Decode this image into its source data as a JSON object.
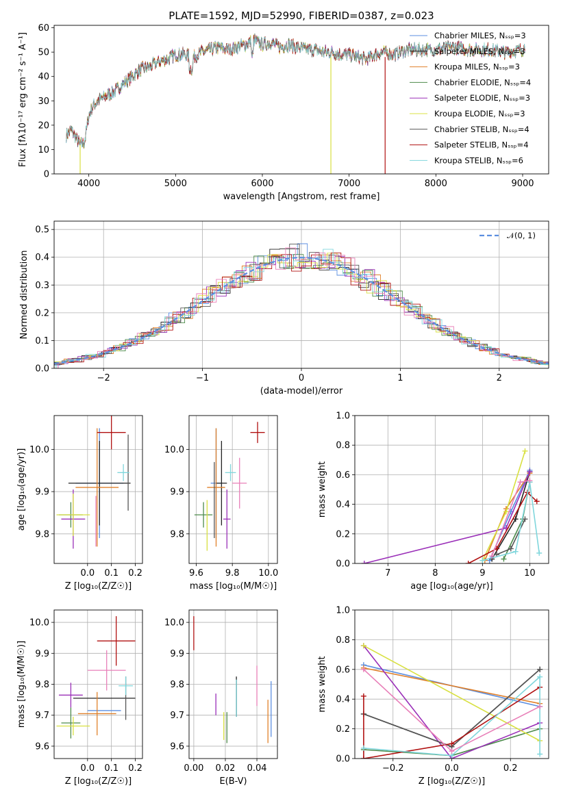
{
  "chart_data": [
    {
      "id": "spectrum",
      "type": "line",
      "title": "PLATE=1592, MJD=52990, FIBERID=0387, z=0.023",
      "xlabel": "wavelength [Angstrom, rest frame]",
      "ylabel": "Flux [fλ10⁻¹⁷ erg cm⁻² s⁻¹ A⁻¹]",
      "xlim": [
        3600,
        9300
      ],
      "ylim": [
        0,
        61
      ],
      "xticks": [
        4000,
        5000,
        6000,
        7000,
        8000,
        9000
      ],
      "yticks": [
        0,
        10,
        20,
        30,
        40,
        50,
        60
      ],
      "legend_position": "top-right",
      "grid": false,
      "continuum": {
        "x": [
          3740,
          3800,
          3850,
          3900,
          3950,
          4000,
          4050,
          4100,
          4150,
          4200,
          4300,
          4400,
          4500,
          4600,
          4700,
          4800,
          4900,
          5000,
          5100,
          5200,
          5300,
          5400,
          5500,
          5600,
          5700,
          5800,
          5900,
          6000,
          6100,
          6200,
          6300,
          6400,
          6500,
          6600,
          6700,
          6800,
          6900,
          7000,
          7100,
          7200,
          7300,
          7400,
          7500,
          7600,
          7700,
          7800,
          7900,
          8000,
          8200,
          8400,
          8600,
          8800,
          9000,
          9030
        ],
        "y": [
          16,
          18,
          15,
          12,
          13,
          24,
          28,
          30,
          31,
          32,
          34,
          37,
          40,
          43,
          44,
          46,
          47,
          49,
          49,
          48,
          50,
          51,
          52,
          51,
          52,
          53,
          55,
          53,
          54,
          52,
          53,
          52,
          51,
          51,
          50,
          50,
          49,
          49,
          48,
          47,
          49,
          50,
          49,
          50,
          51,
          51,
          51,
          51,
          52,
          51,
          51,
          50,
          51,
          52
        ]
      },
      "series": [
        {
          "name": "Chabrier MILES, N_SSP=3",
          "color": "#5b8ee0"
        },
        {
          "name": "Salpeter MILES, N_SSP=3",
          "color": "#222222"
        },
        {
          "name": "Kroupa MILES, N_SSP=3",
          "color": "#e0802a"
        },
        {
          "name": "Chabrier ELODIE, N_SSP=4",
          "color": "#4c8a4a"
        },
        {
          "name": "Salpeter ELODIE, N_SSP=3",
          "color": "#9a2fb8"
        },
        {
          "name": "Kroupa ELODIE, N_SSP=3",
          "color": "#d8e040"
        },
        {
          "name": "Chabrier STELIB, N_SSP=4",
          "color": "#555555"
        },
        {
          "name": "Salpeter STELIB, N_SSP=4",
          "color": "#b01010"
        },
        {
          "name": "Kroupa STELIB, N_SSP=6",
          "color": "#7fd6dc"
        }
      ],
      "spikes": [
        {
          "x": 3900,
          "y0": 12,
          "y1": 0,
          "color": "#d8e040"
        },
        {
          "x": 6790,
          "y0": 48,
          "y1": 0,
          "color": "#d8e040"
        },
        {
          "x": 7415,
          "y0": 48,
          "y1": 0,
          "color": "#b01010"
        }
      ]
    },
    {
      "id": "residuals",
      "type": "histogram",
      "xlabel": "(data-model)/error",
      "ylabel": "Normed distribution",
      "xlim": [
        -2.5,
        2.5
      ],
      "ylim": [
        0,
        0.53
      ],
      "xticks": [
        -2,
        -1,
        0,
        1,
        2
      ],
      "yticks": [
        0.0,
        0.1,
        0.2,
        0.3,
        0.4,
        0.5
      ],
      "grid": true,
      "legend": "𝒩(0, 1)",
      "legend_position": "top-right",
      "bin_width": 0.1
    },
    {
      "id": "age-vs-Z",
      "type": "scatter",
      "xlabel": "Z [log₁₀(Z/Z☉)]",
      "ylabel": "age  [log₁₀(age/yr)]",
      "xlim": [
        -0.14,
        0.23
      ],
      "ylim": [
        9.73,
        10.08
      ],
      "xticks": [
        0.0,
        0.1,
        0.2
      ],
      "yticks": [
        9.8,
        9.9,
        10.0
      ],
      "grid": true,
      "points": [
        {
          "x": 0.05,
          "y": 9.92,
          "xerr": 0.1,
          "yerr": 0.13,
          "color": "#5b8ee0"
        },
        {
          "x": 0.05,
          "y": 9.92,
          "xerr": 0.13,
          "yerr": 0.1,
          "color": "#222222"
        },
        {
          "x": 0.04,
          "y": 9.91,
          "xerr": 0.09,
          "yerr": 0.14,
          "color": "#e0802a"
        },
        {
          "x": -0.07,
          "y": 9.845,
          "xerr": 0.05,
          "yerr": 0.03,
          "color": "#4c8a4a"
        },
        {
          "x": -0.06,
          "y": 9.835,
          "xerr": 0.05,
          "yerr": 0.07,
          "color": "#9a2fb8"
        },
        {
          "x": -0.06,
          "y": 9.845,
          "xerr": 0.07,
          "yerr": 0.05,
          "color": "#d8e040"
        },
        {
          "x": 0.17,
          "y": 9.945,
          "xerr": 0.0,
          "yerr": 0.09,
          "color": "#555555"
        },
        {
          "x": 0.1,
          "y": 10.04,
          "xerr": 0.06,
          "yerr": 0.04,
          "color": "#b01010"
        },
        {
          "x": 0.15,
          "y": 9.945,
          "xerr": 0.025,
          "yerr": 0.02,
          "color": "#7fd6dc"
        },
        {
          "x": 0.035,
          "y": 9.83,
          "xerr": 0.0,
          "yerr": 0.06,
          "color": "#e87fb8"
        }
      ]
    },
    {
      "id": "age-vs-mass",
      "type": "scatter",
      "xlabel": "mass [log₁₀(M/M☉)]",
      "ylabel": "",
      "xlim": [
        9.56,
        10.05
      ],
      "ylim": [
        9.73,
        10.08
      ],
      "xticks": [
        9.6,
        9.8,
        10.0
      ],
      "yticks": [
        9.8,
        9.9,
        10.0
      ],
      "grid": true,
      "points": [
        {
          "x": 9.71,
          "y": 9.92,
          "xerr": 0.03,
          "yerr": 0.13,
          "color": "#5b8ee0"
        },
        {
          "x": 9.74,
          "y": 9.92,
          "xerr": 0.03,
          "yerr": 0.1,
          "color": "#222222"
        },
        {
          "x": 9.71,
          "y": 9.91,
          "xerr": 0.05,
          "yerr": 0.14,
          "color": "#e0802a"
        },
        {
          "x": 9.64,
          "y": 9.845,
          "xerr": 0.05,
          "yerr": 0.03,
          "color": "#4c8a4a"
        },
        {
          "x": 9.77,
          "y": 9.835,
          "xerr": 0.02,
          "yerr": 0.07,
          "color": "#9a2fb8"
        },
        {
          "x": 9.66,
          "y": 9.82,
          "xerr": 0.0,
          "yerr": 0.06,
          "color": "#d8e040"
        },
        {
          "x": 9.7,
          "y": 9.88,
          "xerr": 0.0,
          "yerr": 0.09,
          "color": "#555555"
        },
        {
          "x": 9.94,
          "y": 10.04,
          "xerr": 0.04,
          "yerr": 0.025,
          "color": "#b01010"
        },
        {
          "x": 9.79,
          "y": 9.945,
          "xerr": 0.03,
          "yerr": 0.02,
          "color": "#7fd6dc"
        },
        {
          "x": 9.84,
          "y": 9.92,
          "xerr": 0.04,
          "yerr": 0.06,
          "color": "#e87fb8"
        }
      ]
    },
    {
      "id": "mass-weight-vs-age",
      "type": "line",
      "xlabel": "age  [log₁₀(age/yr)]",
      "ylabel": "mass weight",
      "xlim": [
        6.3,
        10.4
      ],
      "ylim": [
        0,
        1.0
      ],
      "xticks": [
        7,
        8,
        9,
        10
      ],
      "yticks": [
        0.0,
        0.2,
        0.4,
        0.6,
        0.8,
        1.0
      ],
      "grid": true,
      "series": [
        {
          "color": "#5b8ee0",
          "x": [
            9.15,
            9.6,
            10.0
          ],
          "y": [
            0.02,
            0.35,
            0.63
          ]
        },
        {
          "color": "#222222",
          "x": [
            9.2,
            9.7,
            10.0
          ],
          "y": [
            0.03,
            0.3,
            0.62
          ]
        },
        {
          "color": "#e0802a",
          "x": [
            9.05,
            9.5,
            10.0
          ],
          "y": [
            0.02,
            0.37,
            0.61
          ]
        },
        {
          "color": "#4c8a4a",
          "x": [
            9.45,
            9.85,
            10.0
          ],
          "y": [
            0.03,
            0.3,
            0.55
          ]
        },
        {
          "color": "#9a2fb8",
          "x": [
            6.5,
            9.5,
            10.0
          ],
          "y": [
            0.0,
            0.24,
            0.62
          ]
        },
        {
          "color": "#d8e040",
          "x": [
            9.0,
            9.5,
            9.9
          ],
          "y": [
            0.02,
            0.35,
            0.76
          ]
        },
        {
          "color": "#555555",
          "x": [
            9.3,
            9.6,
            9.9
          ],
          "y": [
            0.06,
            0.1,
            0.3
          ]
        },
        {
          "color": "#b01010",
          "x": [
            8.7,
            9.3,
            9.95,
            10.15
          ],
          "y": [
            0.0,
            0.1,
            0.48,
            0.42
          ]
        },
        {
          "color": "#7fd6dc",
          "x": [
            9.0,
            9.7,
            10.0,
            10.2
          ],
          "y": [
            0.02,
            0.08,
            0.55,
            0.07
          ]
        },
        {
          "color": "#e87fb8",
          "x": [
            9.2,
            9.8,
            10.0
          ],
          "y": [
            0.05,
            0.55,
            0.56
          ]
        }
      ]
    },
    {
      "id": "mass-vs-Z",
      "type": "scatter",
      "xlabel": "Z [log₁₀(Z/Z☉)]",
      "ylabel": "mass [log₁₀(M/M☉)]",
      "xlim": [
        -0.14,
        0.23
      ],
      "ylim": [
        9.56,
        10.04
      ],
      "xticks": [
        0.0,
        0.1,
        0.2
      ],
      "yticks": [
        9.6,
        9.7,
        9.8,
        9.9,
        10.0
      ],
      "grid": true,
      "points": [
        {
          "x": 0.07,
          "y": 9.715,
          "xerr": 0.07,
          "yerr": 0.0,
          "color": "#5b8ee0"
        },
        {
          "x": 0.07,
          "y": 9.755,
          "xerr": 0.13,
          "yerr": 0.0,
          "color": "#222222"
        },
        {
          "x": 0.04,
          "y": 9.705,
          "xerr": 0.08,
          "yerr": 0.07,
          "color": "#e0802a"
        },
        {
          "x": -0.07,
          "y": 9.675,
          "xerr": 0.04,
          "yerr": 0.05,
          "color": "#4c8a4a"
        },
        {
          "x": -0.07,
          "y": 9.765,
          "xerr": 0.05,
          "yerr": 0.04,
          "color": "#9a2fb8"
        },
        {
          "x": -0.06,
          "y": 9.665,
          "xerr": 0.07,
          "yerr": 0.03,
          "color": "#d8e040"
        },
        {
          "x": 0.16,
          "y": 9.755,
          "xerr": 0.0,
          "yerr": 0.07,
          "color": "#555555"
        },
        {
          "x": 0.12,
          "y": 9.94,
          "xerr": 0.08,
          "yerr": 0.08,
          "color": "#b01010"
        },
        {
          "x": 0.16,
          "y": 9.795,
          "xerr": 0.03,
          "yerr": 0.03,
          "color": "#7fd6dc"
        },
        {
          "x": 0.08,
          "y": 9.845,
          "xerr": 0.08,
          "yerr": 0.065,
          "color": "#e87fb8"
        }
      ]
    },
    {
      "id": "mass-vs-EBV",
      "type": "scatter",
      "xlabel": "E(B-V)",
      "ylabel": "",
      "xlim": [
        -0.003,
        0.053
      ],
      "ylim": [
        9.56,
        10.04
      ],
      "xticks": [
        0.0,
        0.02,
        0.04
      ],
      "yticks": [
        9.6,
        9.7,
        9.8,
        9.9,
        10.0
      ],
      "grid": true,
      "points": [
        {
          "x": 0.049,
          "y": 9.72,
          "xerr": 0.0,
          "yerr": 0.09,
          "color": "#5b8ee0"
        },
        {
          "x": 0.027,
          "y": 9.76,
          "xerr": 0.0,
          "yerr": 0.065,
          "color": "#222222"
        },
        {
          "x": 0.047,
          "y": 9.68,
          "xerr": 0.0,
          "yerr": 0.07,
          "color": "#e0802a"
        },
        {
          "x": 0.021,
          "y": 9.66,
          "xerr": 0.0,
          "yerr": 0.05,
          "color": "#4c8a4a"
        },
        {
          "x": 0.014,
          "y": 9.735,
          "xerr": 0.0,
          "yerr": 0.035,
          "color": "#9a2fb8"
        },
        {
          "x": 0.019,
          "y": 9.665,
          "xerr": 0.0,
          "yerr": 0.045,
          "color": "#d8e040"
        },
        {
          "x": 0.027,
          "y": 9.755,
          "xerr": 0.0,
          "yerr": 0.06,
          "color": "#555555"
        },
        {
          "x": 0.0,
          "y": 9.965,
          "xerr": 0.0,
          "yerr": 0.055,
          "color": "#b01010"
        },
        {
          "x": 0.027,
          "y": 9.755,
          "xerr": 0.0,
          "yerr": 0.06,
          "color": "#7fd6dc"
        },
        {
          "x": 0.04,
          "y": 9.795,
          "xerr": 0.0,
          "yerr": 0.065,
          "color": "#e87fb8"
        }
      ]
    },
    {
      "id": "mass-weight-vs-Z",
      "type": "line",
      "xlabel": "Z [log₁₀(Z/Z☉)]",
      "ylabel": "mass weight",
      "xlim": [
        -0.33,
        0.33
      ],
      "ylim": [
        0,
        1.0
      ],
      "xticks": [
        -0.2,
        0.0,
        0.2
      ],
      "yticks": [
        0.0,
        0.2,
        0.4,
        0.6,
        0.8,
        1.0
      ],
      "grid": true,
      "series": [
        {
          "color": "#5b8ee0",
          "x": [
            -0.3,
            0.3
          ],
          "y": [
            0.63,
            0.35
          ]
        },
        {
          "color": "#222222",
          "x": [
            -0.3,
            0.0,
            0.3
          ],
          "y": [
            0.3,
            0.08,
            0.6
          ]
        },
        {
          "color": "#e0802a",
          "x": [
            -0.3,
            0.3
          ],
          "y": [
            0.61,
            0.37
          ]
        },
        {
          "color": "#4c8a4a",
          "x": [
            -0.3,
            0.0,
            0.3
          ],
          "y": [
            0.06,
            0.02,
            0.2
          ]
        },
        {
          "color": "#9a2fb8",
          "x": [
            -0.3,
            0.0,
            0.3
          ],
          "y": [
            0.76,
            0.0,
            0.24
          ]
        },
        {
          "color": "#d8e040",
          "x": [
            -0.3,
            0.3
          ],
          "y": [
            0.76,
            0.12
          ]
        },
        {
          "color": "#555555",
          "x": [
            -0.3,
            0.0,
            0.3
          ],
          "y": [
            0.3,
            0.08,
            0.6
          ]
        },
        {
          "color": "#b01010",
          "x": [
            -0.3,
            -0.3,
            0.0,
            0.3
          ],
          "y": [
            0.42,
            0.0,
            0.1,
            0.48
          ]
        },
        {
          "color": "#7fd6dc",
          "x": [
            -0.3,
            0.0,
            0.3,
            0.3
          ],
          "y": [
            0.07,
            0.02,
            0.55,
            0.03
          ]
        },
        {
          "color": "#e87fb8",
          "x": [
            -0.3,
            0.0,
            0.3
          ],
          "y": [
            0.6,
            0.05,
            0.35
          ]
        }
      ]
    }
  ]
}
